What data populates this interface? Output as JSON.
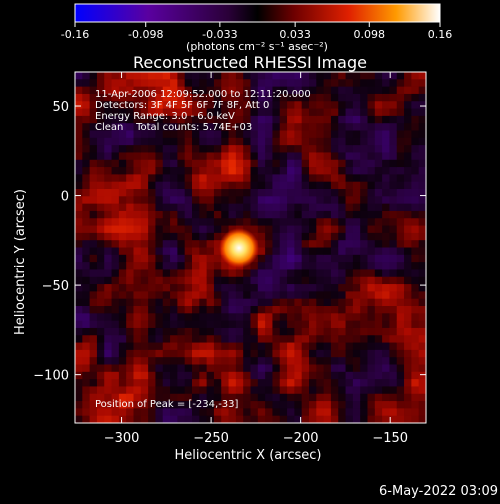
{
  "colorbar": {
    "tick_labels": [
      "-0.16",
      "-0.098",
      "-0.033",
      "0.033",
      "0.098",
      "0.16"
    ],
    "tick_values": [
      -0.16,
      -0.098,
      -0.033,
      0.033,
      0.098,
      0.16
    ],
    "range": [
      -0.16,
      0.16
    ],
    "units_label": "(photons cm⁻² s⁻¹ asec⁻²)",
    "colors": [
      "#0000ff",
      "#5a00a0",
      "#2a0038",
      "#000000",
      "#6e0000",
      "#e02000",
      "#ff9a00",
      "#ffffff"
    ]
  },
  "chart_data": {
    "type": "heatmap",
    "title": "Reconstructed RHESSI Image",
    "xlabel": "Heliocentric X (arcsec)",
    "ylabel": "Heliocentric Y (arcsec)",
    "xlim": [
      -326,
      -130
    ],
    "ylim": [
      -127,
      69
    ],
    "x_ticks": [
      -300,
      -250,
      -200,
      -150
    ],
    "x_tick_labels": [
      "−300",
      "−250",
      "−200",
      "−150"
    ],
    "y_ticks": [
      50,
      0,
      -50,
      -100
    ],
    "y_tick_labels": [
      "50",
      "0",
      "−50",
      "−100"
    ],
    "peak": {
      "x": -234,
      "y": -33
    },
    "info_lines": [
      "11-Apr-2006 12:09:52.000 to 12:11:20.000",
      "Detectors: 3F 4F 5F 6F 7F 8F, Att 0",
      "Energy Range: 3.0 - 6.0 keV",
      "Clean    Total counts: 5.74E+03"
    ],
    "peak_label": "Position of Peak = [-234,-33]"
  },
  "footer": {
    "timestamp": "6-May-2022 03:09"
  }
}
